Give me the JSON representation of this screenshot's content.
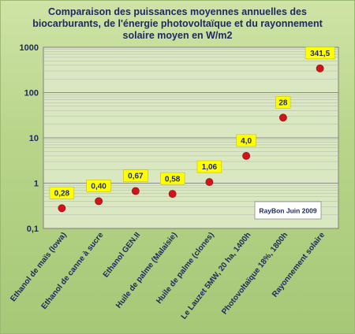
{
  "chart_data": {
    "type": "scatter",
    "title": "Comparaison des puissances moyennes annuelles des biocarburants, de l'énergie photovoltaïque et du rayonnement solaire moyen en W/m2",
    "y_scale": "log",
    "ylim": [
      0.1,
      1000
    ],
    "y_ticks": [
      "0,1",
      "1",
      "10",
      "100",
      "1000"
    ],
    "y_tick_values": [
      0.1,
      1,
      10,
      100,
      1000
    ],
    "grid": true,
    "categories": [
      "Ethanol de maïs (Iowa)",
      "Ethanol de canne à sucre",
      "Ethanol GEN.II",
      "Huile de palme (Malaisie)",
      "Huile de palme (clones)",
      "Le Lauzet 5MW, 20 ha, 1400h",
      "Photovoltaïque 18%, 1800h",
      "Rayonnement solaire"
    ],
    "values": [
      0.28,
      0.4,
      0.67,
      0.58,
      1.06,
      4.0,
      28,
      341.5
    ],
    "data_labels": [
      "0,28",
      "0,40",
      "0,67",
      "0,58",
      "1,06",
      "4,0",
      "28",
      "341,5"
    ],
    "annotation": "RayBon Juin 2009",
    "colors": {
      "marker": "#d0141a",
      "label_bg": "#ffff00",
      "plot_bg": "#d9e8c0",
      "title": "#1f2a63"
    }
  }
}
